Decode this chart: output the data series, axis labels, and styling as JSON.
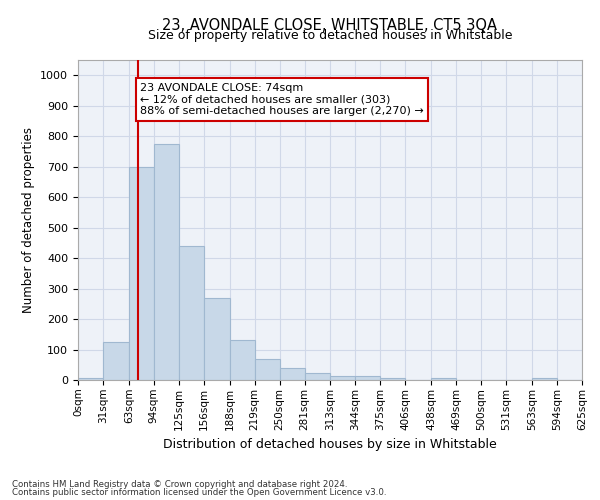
{
  "title": "23, AVONDALE CLOSE, WHITSTABLE, CT5 3QA",
  "subtitle": "Size of property relative to detached houses in Whitstable",
  "xlabel": "Distribution of detached houses by size in Whitstable",
  "ylabel": "Number of detached properties",
  "bar_edges": [
    0,
    31,
    63,
    94,
    125,
    156,
    188,
    219,
    250,
    281,
    313,
    344,
    375,
    406,
    438,
    469,
    500,
    531,
    563,
    594,
    625
  ],
  "bar_heights": [
    5,
    125,
    700,
    775,
    440,
    270,
    130,
    70,
    40,
    22,
    13,
    13,
    5,
    0,
    5,
    0,
    0,
    0,
    5,
    0
  ],
  "bar_color": "#c8d8e8",
  "bar_edge_color": "#a0b8d0",
  "property_size": 74,
  "vline_color": "#cc0000",
  "annotation_line1": "23 AVONDALE CLOSE: 74sqm",
  "annotation_line2": "← 12% of detached houses are smaller (303)",
  "annotation_line3": "88% of semi-detached houses are larger (2,270) →",
  "annotation_box_color": "#ffffff",
  "annotation_box_edge": "#cc0000",
  "ylim": [
    0,
    1050
  ],
  "yticks": [
    0,
    100,
    200,
    300,
    400,
    500,
    600,
    700,
    800,
    900,
    1000
  ],
  "grid_color": "#d0d8e8",
  "background_color": "#eef2f8",
  "footer_line1": "Contains HM Land Registry data © Crown copyright and database right 2024.",
  "footer_line2": "Contains public sector information licensed under the Open Government Licence v3.0."
}
